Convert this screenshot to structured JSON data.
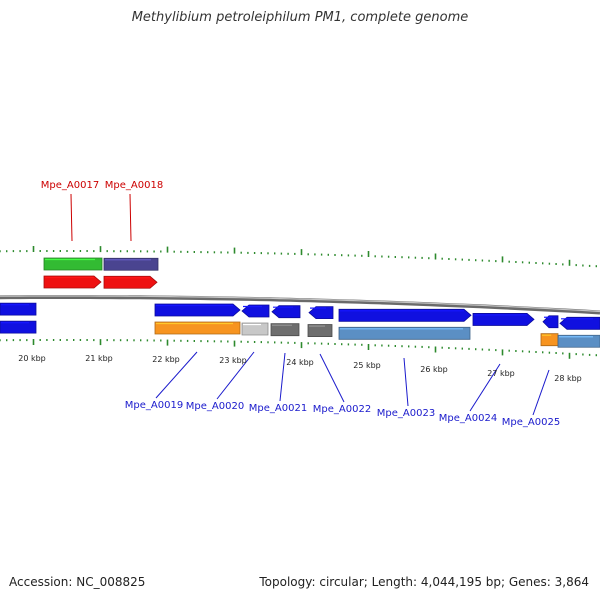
{
  "title": "Methylibium petroleiphilum PM1, complete genome",
  "footer": {
    "accession": "Accession: NC_008825",
    "topology": "Topology: circular; Length: 4,044,195 bp; Genes: 3,864"
  },
  "colors": {
    "forward_gene": "#1010e0",
    "reverse_gene_steel": "#5b8fc4",
    "orange_gene": "#f79420",
    "gray_gene": "#c8c8c8",
    "dark_gray_gene": "#6e6e6e",
    "green_gene": "#33bb33",
    "purple_gene": "#4a4490",
    "red_gene": "#ee1111",
    "tick": "#2d8a2d",
    "red_label": "#cc0000",
    "blue_label": "#1a1acc"
  },
  "scale_labels": [
    "20 kbp",
    "21 kbp",
    "22 kbp",
    "23 kbp",
    "24 kbp",
    "25 kbp",
    "26 kbp",
    "27 kbp",
    "28 kbp"
  ],
  "upper_labels": [
    "Mpe_A0017",
    "Mpe_A0018"
  ],
  "lower_labels": [
    "Mpe_A0019",
    "Mpe_A0020",
    "Mpe_A0021",
    "Mpe_A0022",
    "Mpe_A0023",
    "Mpe_A0024",
    "Mpe_A0025"
  ]
}
